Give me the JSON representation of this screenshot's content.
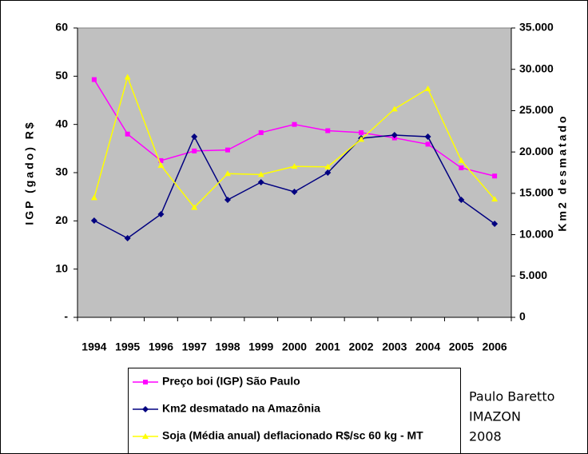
{
  "chart_data": {
    "type": "line",
    "categories": [
      "1994",
      "1995",
      "1996",
      "1997",
      "1998",
      "1999",
      "2000",
      "2001",
      "2002",
      "2003",
      "2004",
      "2005",
      "2006"
    ],
    "y_label": "IGP (gado) R$",
    "y2_label": "Km2 desmatado",
    "ylim": [
      0,
      60
    ],
    "yticks": [
      {
        "value": 0,
        "label": "-"
      },
      10,
      20,
      30,
      40,
      50,
      60
    ],
    "y2lim": [
      0,
      35000
    ],
    "y2ticks": [
      0,
      {
        "value": 5000,
        "label": "5.000"
      },
      {
        "value": 10000,
        "label": "10.000"
      },
      {
        "value": 15000,
        "label": "15.000"
      },
      {
        "value": 20000,
        "label": "20.000"
      },
      {
        "value": 25000,
        "label": "25.000"
      },
      {
        "value": 30000,
        "label": "30.000"
      },
      {
        "value": 35000,
        "label": "35.000"
      }
    ],
    "series": [
      {
        "name": "Preço boi (IGP) São Paulo",
        "color": "#ff00ff",
        "marker": "square",
        "values": [
          49.3,
          38,
          32.5,
          34.5,
          34.7,
          38.3,
          40,
          38.7,
          38.3,
          37.2,
          35.9,
          31,
          29.3
        ]
      },
      {
        "name": "Km2 desmatado na Amazônia",
        "color": "#000080",
        "marker": "diamond",
        "axis": "y2",
        "values": [
          11700,
          9570,
          12470,
          21850,
          14210,
          16340,
          15180,
          17500,
          21660,
          22040,
          21850,
          14210,
          11310
        ]
      },
      {
        "name": "Soja (Média anual) deflacionado R$/sc 60 kg - MT",
        "color": "#ffff00",
        "marker": "triangle",
        "values": [
          24.8,
          49.8,
          31.5,
          22.8,
          29.8,
          29.6,
          31.3,
          31.2,
          36.9,
          43.2,
          47.4,
          32.5,
          24.5
        ]
      }
    ],
    "annotation": [
      "Paulo Baretto",
      "IMAZON",
      "2008"
    ]
  }
}
